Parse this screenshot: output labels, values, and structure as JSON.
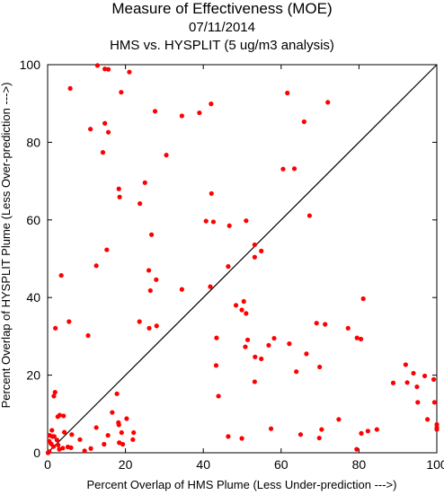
{
  "chart_data": {
    "type": "scatter",
    "title": "Measure of Effectiveness (MOE)",
    "subtitle": "07/11/2014",
    "subtitle2": "HMS vs. HYSPLIT  (5 ug/m3 analysis)",
    "xlabel": "Percent Overlap of HMS Plume (Less Under-prediction --->)",
    "ylabel": "Percent Overlap of HYSPLIT Plume (Less Over-prediction --->)",
    "xlim": [
      0,
      100
    ],
    "ylim": [
      0,
      100
    ],
    "xticks": [
      0,
      20,
      40,
      60,
      80,
      100
    ],
    "yticks": [
      0,
      20,
      40,
      60,
      80,
      100
    ],
    "grid": false,
    "diagonal_line": true,
    "marker_color": "#ff0000",
    "line_color": "#000000",
    "points": [
      [
        12.8,
        99.8
      ],
      [
        14.7,
        98.9
      ],
      [
        15.6,
        98.8
      ],
      [
        21.0,
        98.1
      ],
      [
        5.8,
        93.9
      ],
      [
        18.9,
        92.9
      ],
      [
        11.0,
        83.4
      ],
      [
        14.7,
        84.9
      ],
      [
        15.6,
        82.6
      ],
      [
        14.2,
        77.4
      ],
      [
        27.6,
        88.0
      ],
      [
        34.5,
        86.8
      ],
      [
        39.0,
        87.6
      ],
      [
        42.0,
        89.9
      ],
      [
        30.5,
        76.7
      ],
      [
        61.6,
        92.7
      ],
      [
        72.0,
        90.3
      ],
      [
        65.9,
        85.3
      ],
      [
        60.5,
        73.1
      ],
      [
        63.4,
        73.2
      ],
      [
        42.1,
        66.8
      ],
      [
        25.0,
        69.6
      ],
      [
        18.3,
        68.0
      ],
      [
        18.5,
        65.9
      ],
      [
        23.7,
        64.2
      ],
      [
        40.7,
        59.7
      ],
      [
        42.6,
        59.5
      ],
      [
        46.7,
        58.5
      ],
      [
        51.0,
        59.8
      ],
      [
        67.3,
        61.1
      ],
      [
        26.7,
        56.2
      ],
      [
        15.2,
        52.3
      ],
      [
        53.2,
        53.6
      ],
      [
        54.9,
        52.0
      ],
      [
        53.2,
        50.4
      ],
      [
        12.5,
        48.2
      ],
      [
        46.4,
        48.0
      ],
      [
        26.0,
        47.0
      ],
      [
        27.9,
        44.6
      ],
      [
        3.5,
        45.7
      ],
      [
        26.4,
        41.8
      ],
      [
        34.5,
        42.1
      ],
      [
        41.8,
        42.8
      ],
      [
        81.1,
        39.7
      ],
      [
        50.4,
        39.0
      ],
      [
        48.4,
        38.0
      ],
      [
        49.9,
        36.8
      ],
      [
        51.0,
        35.9
      ],
      [
        5.5,
        33.8
      ],
      [
        23.6,
        33.8
      ],
      [
        26.1,
        32.1
      ],
      [
        28.0,
        32.7
      ],
      [
        2.0,
        32.1
      ],
      [
        10.4,
        30.2
      ],
      [
        58.2,
        29.5
      ],
      [
        62.1,
        28.1
      ],
      [
        69.1,
        33.4
      ],
      [
        71.3,
        33.1
      ],
      [
        77.2,
        32.1
      ],
      [
        79.5,
        29.6
      ],
      [
        80.5,
        29.3
      ],
      [
        43.4,
        29.6
      ],
      [
        51.4,
        29.1
      ],
      [
        56.8,
        27.7
      ],
      [
        50.8,
        27.3
      ],
      [
        66.5,
        25.5
      ],
      [
        53.3,
        24.7
      ],
      [
        54.9,
        24.2
      ],
      [
        43.3,
        22.5
      ],
      [
        63.9,
        20.9
      ],
      [
        69.9,
        22.1
      ],
      [
        53.2,
        18.3
      ],
      [
        43.9,
        14.6
      ],
      [
        17.8,
        15.2
      ],
      [
        1.9,
        15.6
      ],
      [
        1.6,
        14.6
      ],
      [
        92.0,
        22.7
      ],
      [
        94.0,
        20.5
      ],
      [
        96.9,
        19.8
      ],
      [
        99.2,
        18.9
      ],
      [
        88.8,
        18.0
      ],
      [
        92.4,
        18.1
      ],
      [
        94.9,
        17.0
      ],
      [
        95.1,
        13.0
      ],
      [
        99.4,
        13.0
      ],
      [
        2.6,
        9.3
      ],
      [
        3.1,
        9.7
      ],
      [
        4.1,
        9.5
      ],
      [
        16.6,
        10.4
      ],
      [
        20.3,
        8.8
      ],
      [
        97.6,
        8.6
      ],
      [
        18.2,
        7.8
      ],
      [
        18.3,
        7.2
      ],
      [
        74.8,
        8.6
      ],
      [
        100,
        7.3
      ],
      [
        100,
        6.5
      ],
      [
        100,
        6.0
      ],
      [
        1.1,
        5.8
      ],
      [
        0.5,
        4.5
      ],
      [
        1.2,
        4.2
      ],
      [
        1.7,
        4.2
      ],
      [
        2.4,
        3.3
      ],
      [
        4.3,
        5.3
      ],
      [
        6.2,
        4.7
      ],
      [
        12.5,
        6.5
      ],
      [
        15.5,
        4.5
      ],
      [
        19.0,
        5.2
      ],
      [
        22.1,
        5.2
      ],
      [
        57.4,
        6.2
      ],
      [
        70.4,
        6.0
      ],
      [
        82.3,
        5.6
      ],
      [
        84.6,
        6.0
      ],
      [
        80.6,
        5.0
      ],
      [
        65.0,
        4.7
      ],
      [
        69.8,
        3.8
      ],
      [
        46.4,
        4.2
      ],
      [
        49.9,
        3.7
      ],
      [
        2.7,
        2.0
      ],
      [
        0.4,
        3.0
      ],
      [
        0.9,
        2.3
      ],
      [
        1.5,
        1.6
      ],
      [
        3.0,
        0.9
      ],
      [
        3.9,
        1.2
      ],
      [
        5.2,
        1.5
      ],
      [
        6.0,
        1.3
      ],
      [
        8.3,
        3.4
      ],
      [
        11.1,
        1.1
      ],
      [
        14.5,
        2.2
      ],
      [
        18.4,
        2.6
      ],
      [
        19.3,
        2.2
      ],
      [
        21.9,
        3.4
      ],
      [
        9.5,
        0.5
      ],
      [
        79.4,
        0.9
      ],
      [
        0.4,
        0.3
      ],
      [
        0.1,
        0.0
      ]
    ]
  }
}
